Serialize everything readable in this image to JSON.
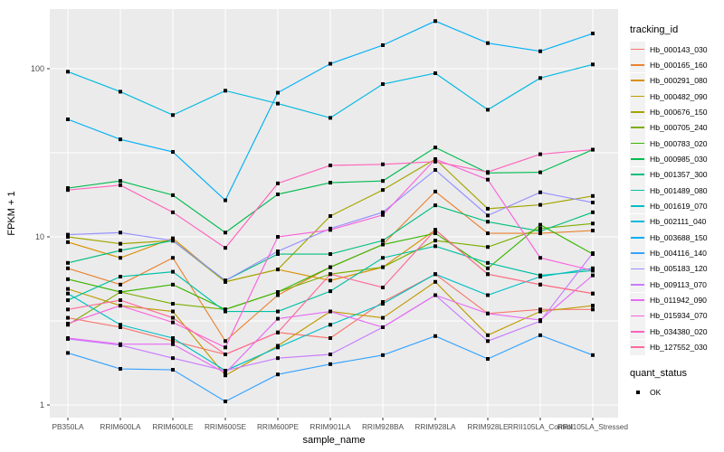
{
  "chart_data": {
    "type": "line",
    "title": "",
    "xlabel": "sample_name",
    "ylabel": "FPKM + 1",
    "y_scale": "log10",
    "yticks": [
      1,
      10,
      100
    ],
    "ylim": [
      0.85,
      225
    ],
    "grid": true,
    "legend_position": "right",
    "panel_bg": "#EBEBEB",
    "grid_color": "#FFFFFF",
    "point_color": "#000000",
    "axis_text_color": "#4D4D4D",
    "categories": [
      "PB350LA",
      "RRIM600LA",
      "RRIM600LE",
      "RRIM600SE",
      "RRIM600PE",
      "RRIM901LA",
      "RRIM928BA",
      "RRIM928LA",
      "RRIM928LE",
      "RRII105LA_Control",
      "RRII105LA_Stressed"
    ],
    "series": [
      {
        "name": "Hb_000143_030",
        "color": "#F8766D",
        "values": [
          3.3,
          2.9,
          2.4,
          2.0,
          2.7,
          2.5,
          4.1,
          6.0,
          3.5,
          3.7,
          3.7
        ]
      },
      {
        "name": "Hb_000165_160",
        "color": "#EA8331",
        "values": [
          6.5,
          5.2,
          7.5,
          2.4,
          4.5,
          6.6,
          9.0,
          18.6,
          10.5,
          10.5,
          10.9
        ]
      },
      {
        "name": "Hb_000291_080",
        "color": "#D89000",
        "values": [
          9.3,
          7.5,
          9.8,
          5.4,
          6.4,
          5.5,
          6.6,
          11.0,
          6.0,
          5.2,
          4.6
        ]
      },
      {
        "name": "Hb_000482_090",
        "color": "#C09B00",
        "values": [
          4.9,
          3.9,
          3.6,
          1.5,
          2.25,
          3.6,
          3.3,
          5.4,
          2.6,
          3.6,
          3.9
        ]
      },
      {
        "name": "Hb_000676_150",
        "color": "#A3A500",
        "values": [
          10.0,
          9.1,
          9.5,
          5.4,
          6.4,
          13.3,
          19.0,
          29.0,
          14.7,
          15.5,
          17.5
        ]
      },
      {
        "name": "Hb_000705_240",
        "color": "#7CAE00",
        "values": [
          3.0,
          4.7,
          4.0,
          3.7,
          4.7,
          6.0,
          6.6,
          9.5,
          8.7,
          11.2,
          12.0
        ]
      },
      {
        "name": "Hb_000783_020",
        "color": "#39B600",
        "values": [
          5.6,
          4.7,
          5.2,
          3.7,
          4.7,
          6.6,
          9.0,
          10.5,
          6.5,
          11.8,
          7.9
        ]
      },
      {
        "name": "Hb_000985_030",
        "color": "#00BB4E",
        "values": [
          19.5,
          21.5,
          17.7,
          10.6,
          17.9,
          21.0,
          21.5,
          34.0,
          24.0,
          24.2,
          33.0
        ]
      },
      {
        "name": "Hb_001357_300",
        "color": "#00BF7D",
        "values": [
          7.0,
          8.3,
          9.5,
          5.5,
          7.9,
          7.9,
          9.5,
          15.4,
          12.3,
          10.8,
          14.0
        ]
      },
      {
        "name": "Hb_001489_080",
        "color": "#00C1A3",
        "values": [
          4.2,
          5.8,
          6.2,
          3.6,
          3.6,
          4.75,
          7.5,
          8.8,
          7.0,
          5.9,
          6.3
        ]
      },
      {
        "name": "Hb_001619_070",
        "color": "#00BFC4",
        "values": [
          4.6,
          3.0,
          2.5,
          1.6,
          2.2,
          3.0,
          4.0,
          6.0,
          4.5,
          5.8,
          6.5
        ]
      },
      {
        "name": "Hb_002111_040",
        "color": "#00BAE0",
        "values": [
          96,
          73,
          53,
          74,
          62,
          51,
          81,
          94,
          57,
          88,
          106
        ]
      },
      {
        "name": "Hb_003688_150",
        "color": "#00B0F6",
        "values": [
          50,
          38,
          32,
          16.5,
          72,
          107,
          138,
          192,
          142,
          127,
          162
        ]
      },
      {
        "name": "Hb_004116_140",
        "color": "#35A2FF",
        "values": [
          2.04,
          1.64,
          1.62,
          1.05,
          1.52,
          1.75,
          1.98,
          2.57,
          1.88,
          2.6,
          1.98
        ]
      },
      {
        "name": "Hb_005183_120",
        "color": "#9590FF",
        "values": [
          10.3,
          10.6,
          9.5,
          5.5,
          8.2,
          11.2,
          14.0,
          25.0,
          13.4,
          18.4,
          16.0
        ]
      },
      {
        "name": "Hb_009113_070",
        "color": "#C77CFF",
        "values": [
          2.47,
          2.27,
          1.9,
          1.6,
          1.9,
          2.0,
          2.9,
          4.5,
          2.4,
          3.15,
          8.0
        ]
      },
      {
        "name": "Hb_011942_090",
        "color": "#E76BF3",
        "values": [
          2.5,
          2.3,
          2.3,
          1.55,
          3.26,
          3.6,
          2.9,
          4.5,
          3.5,
          3.2,
          5.9
        ]
      },
      {
        "name": "Hb_015934_070",
        "color": "#FA62DB",
        "values": [
          3.05,
          3.9,
          3.1,
          2.2,
          10.0,
          11.0,
          13.5,
          29.0,
          21.9,
          7.5,
          6.3
        ]
      },
      {
        "name": "Hb_034380_020",
        "color": "#FF62BC",
        "values": [
          19.0,
          20.3,
          14.0,
          8.6,
          20.8,
          26.6,
          27.0,
          28.0,
          24.3,
          31.0,
          33.0
        ]
      },
      {
        "name": "Hb_127552_030",
        "color": "#FF6A98",
        "values": [
          3.7,
          4.2,
          3.3,
          2.0,
          2.7,
          6.0,
          5.0,
          11.0,
          6.0,
          5.2,
          4.6
        ]
      }
    ]
  },
  "legend": {
    "title": "tracking_id"
  },
  "legend2": {
    "title": "quant_status",
    "items": [
      {
        "label": "OK"
      }
    ]
  }
}
